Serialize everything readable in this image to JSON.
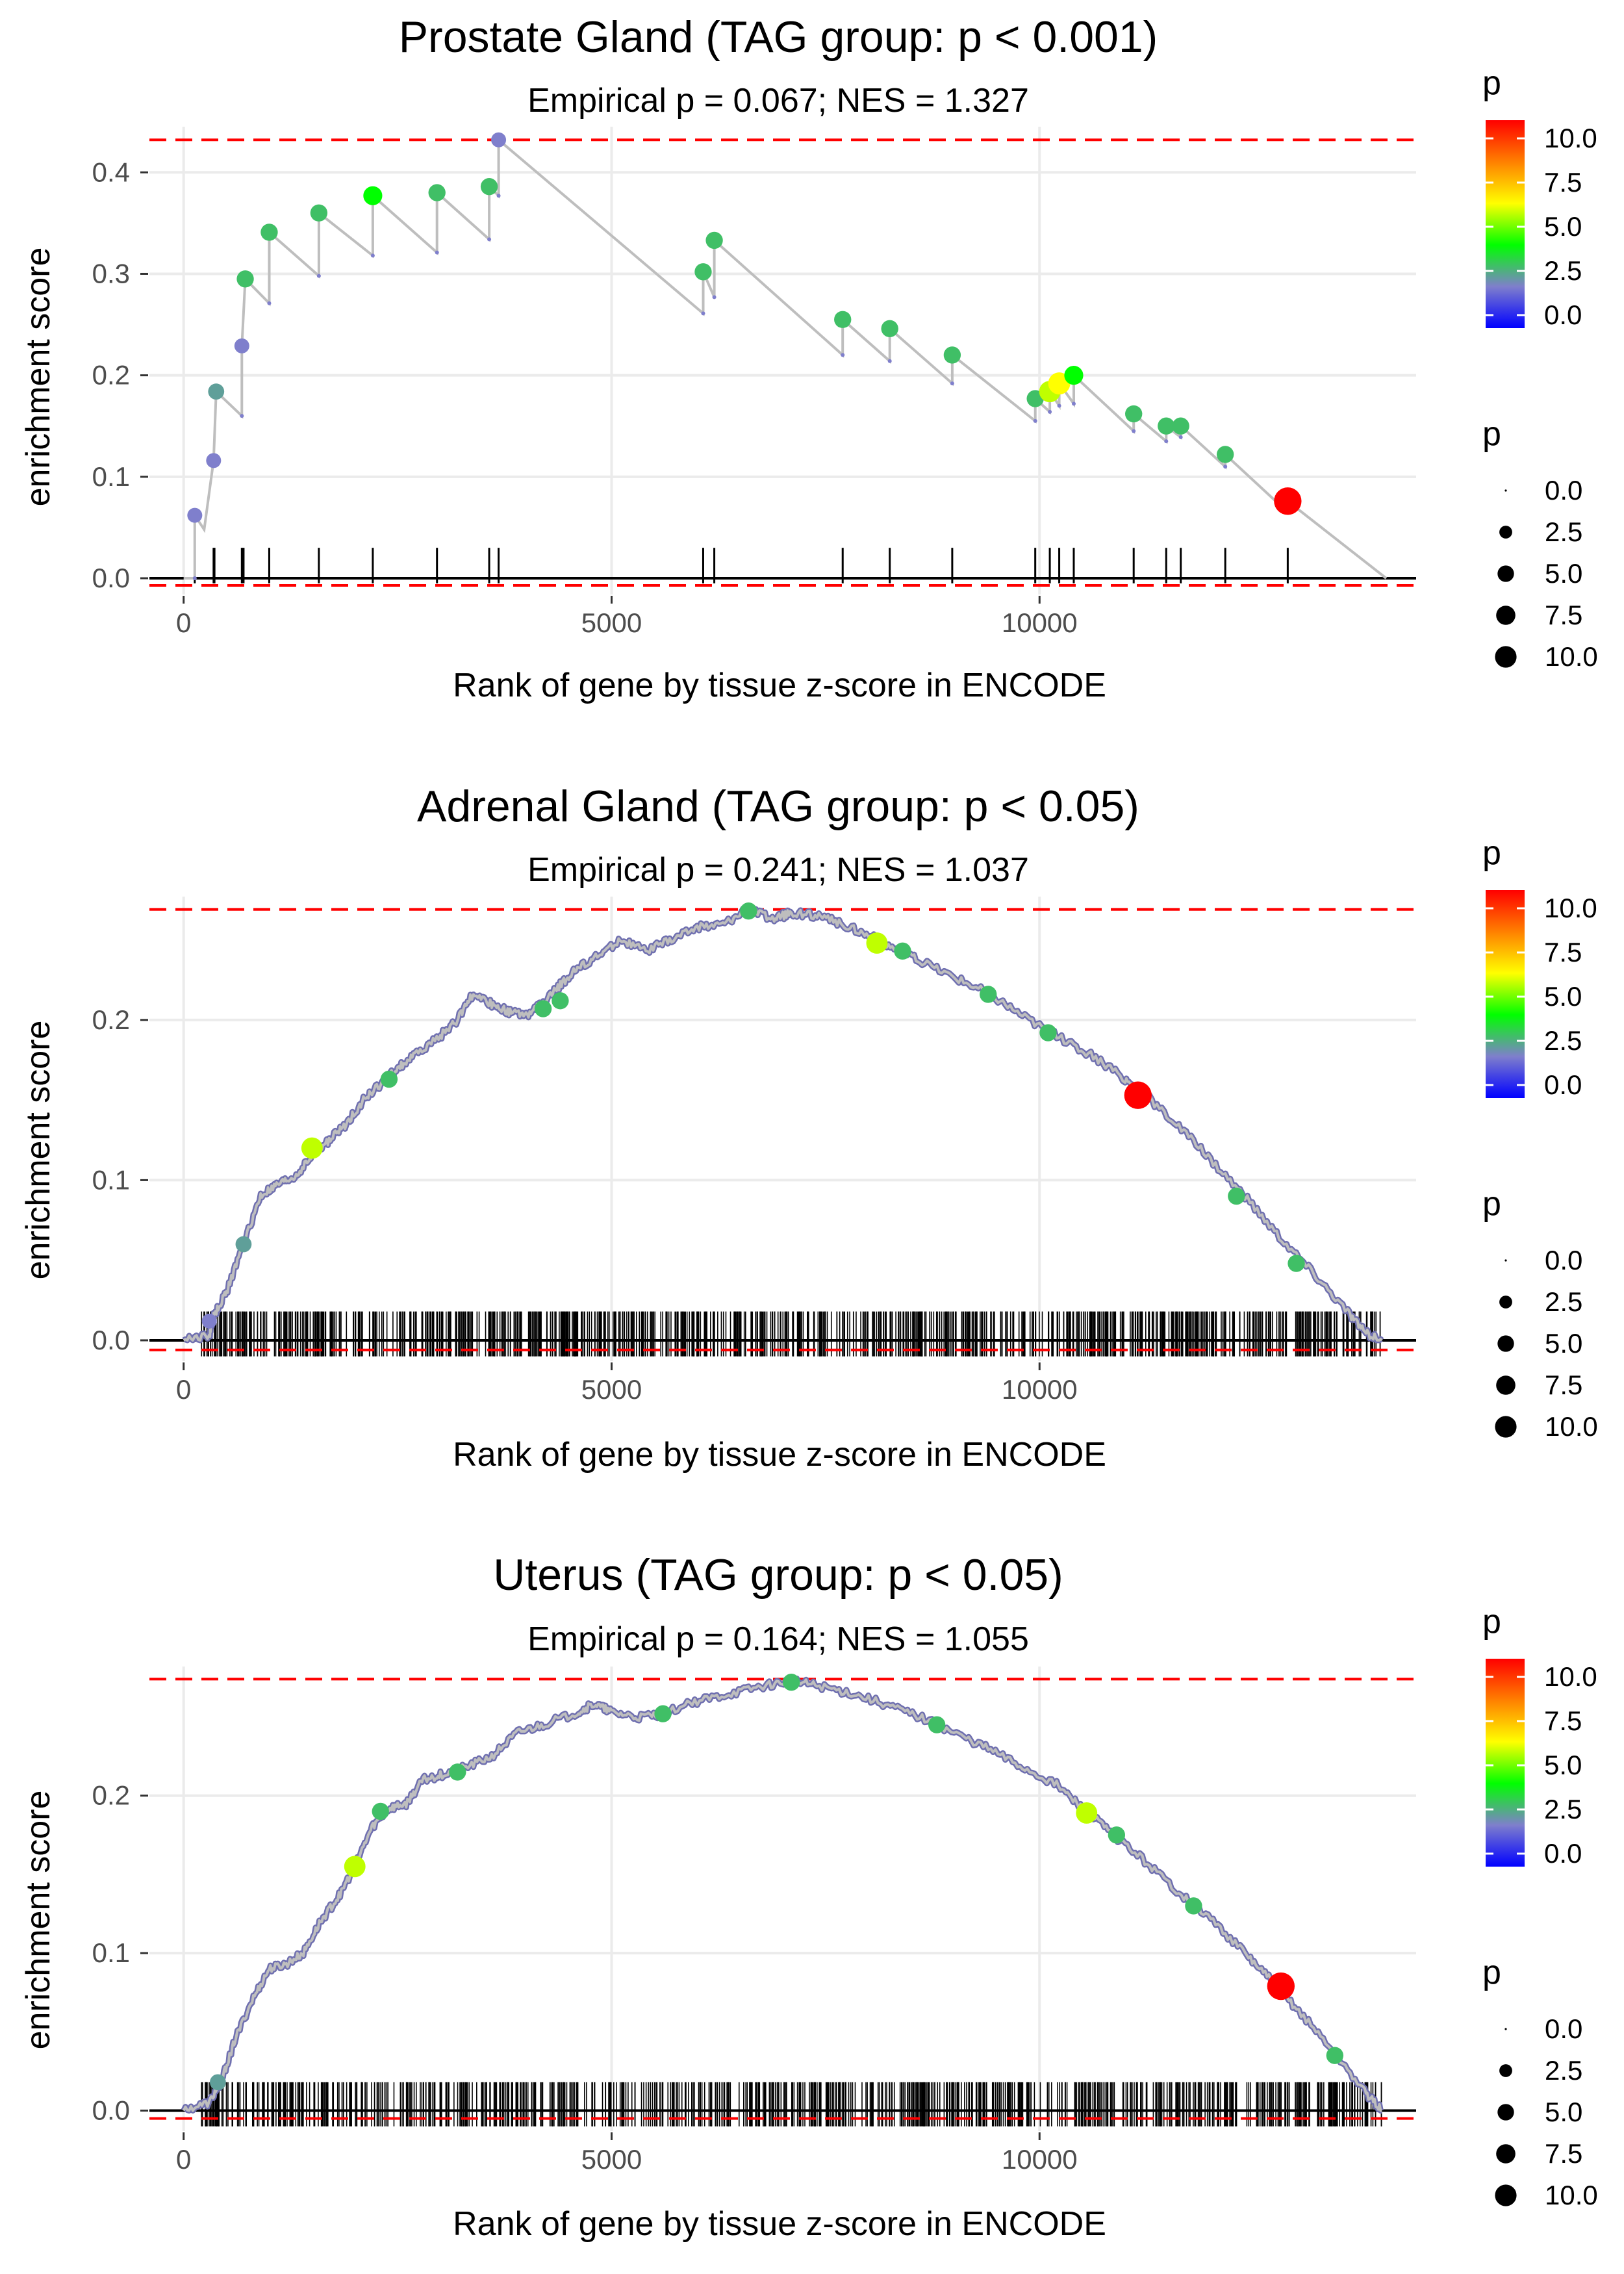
{
  "colors": {
    "grid": "#ebebeb",
    "line": "#bebebe",
    "baseline": "#000000",
    "dashed": "#ff0000",
    "text": "#000000",
    "tick_text": "#4d4d4d",
    "gradient": [
      "#0000ff",
      "#7f7fcc",
      "#00ff00",
      "#ffff00",
      "#ff8000",
      "#ff0000"
    ]
  },
  "legend": {
    "color_title": "p",
    "color_labels": [
      "10.0",
      "7.5",
      "5.0",
      "2.5",
      "0.0"
    ],
    "size_title": "p",
    "size_labels": [
      "0.0",
      "2.5",
      "5.0",
      "7.5",
      "10.0"
    ]
  },
  "chart_data": [
    {
      "type": "line",
      "title": "Prostate Gland (TAG group: p < 0.001)",
      "subtitle": "Empirical p = 0.067; NES = 1.327",
      "xlabel": "Rank of gene by tissue z-score in ENCODE",
      "ylabel": "enrichment score",
      "xlim": [
        -400,
        14400
      ],
      "ylim": [
        -0.016,
        0.445
      ],
      "xticks": [
        0,
        5000,
        10000
      ],
      "xtick_labels": [
        "0",
        "5000",
        "10000"
      ],
      "yticks": [
        0.0,
        0.1,
        0.2,
        0.3,
        0.4
      ],
      "ytick_labels": [
        "0.0",
        "0.1",
        "0.2",
        "0.3",
        "0.4"
      ],
      "max_es": 0.432,
      "min_es": -0.007,
      "rug_top": 0.03,
      "rug_bottom": -0.005,
      "rug_positions": [
        130,
        350,
        360,
        680,
        700,
        1000,
        1580,
        2210,
        2960,
        3570,
        3680,
        6070,
        6200,
        7700,
        8250,
        8980,
        9950,
        10120,
        10230,
        10400,
        11100,
        11480,
        11650,
        12170,
        12900
      ],
      "points": [
        {
          "x": 130,
          "y": 0.062,
          "p": 2.0
        },
        {
          "x": 350,
          "y": 0.116,
          "p": 2.0
        },
        {
          "x": 380,
          "y": 0.184,
          "p": 2.5
        },
        {
          "x": 680,
          "y": 0.229,
          "p": 2.0
        },
        {
          "x": 720,
          "y": 0.295,
          "p": 3.0
        },
        {
          "x": 1000,
          "y": 0.341,
          "p": 3.0
        },
        {
          "x": 1580,
          "y": 0.36,
          "p": 3.0
        },
        {
          "x": 2210,
          "y": 0.377,
          "p": 4.0
        },
        {
          "x": 2960,
          "y": 0.38,
          "p": 3.0
        },
        {
          "x": 3570,
          "y": 0.386,
          "p": 3.0
        },
        {
          "x": 3680,
          "y": 0.432,
          "p": 2.0
        },
        {
          "x": 6070,
          "y": 0.302,
          "p": 3.0
        },
        {
          "x": 6200,
          "y": 0.333,
          "p": 3.0
        },
        {
          "x": 7700,
          "y": 0.255,
          "p": 3.0
        },
        {
          "x": 8250,
          "y": 0.246,
          "p": 3.0
        },
        {
          "x": 8980,
          "y": 0.22,
          "p": 3.0
        },
        {
          "x": 9950,
          "y": 0.177,
          "p": 3.0
        },
        {
          "x": 10120,
          "y": 0.184,
          "p": 5.5
        },
        {
          "x": 10230,
          "y": 0.192,
          "p": 6.0
        },
        {
          "x": 10400,
          "y": 0.2,
          "p": 4.0
        },
        {
          "x": 11100,
          "y": 0.162,
          "p": 3.0
        },
        {
          "x": 11480,
          "y": 0.15,
          "p": 3.0
        },
        {
          "x": 11650,
          "y": 0.15,
          "p": 3.0
        },
        {
          "x": 12170,
          "y": 0.122,
          "p": 3.0
        },
        {
          "x": 12900,
          "y": 0.076,
          "p": 10.5
        }
      ],
      "line": [
        [
          0,
          0.0
        ],
        [
          130,
          0.0
        ],
        [
          130,
          0.062
        ],
        [
          240,
          0.048
        ],
        [
          350,
          0.116
        ],
        [
          380,
          0.184
        ],
        [
          680,
          0.16
        ],
        [
          680,
          0.229
        ],
        [
          720,
          0.295
        ],
        [
          1000,
          0.271
        ],
        [
          1000,
          0.341
        ],
        [
          1580,
          0.298
        ],
        [
          1580,
          0.36
        ],
        [
          2210,
          0.318
        ],
        [
          2210,
          0.377
        ],
        [
          2960,
          0.321
        ],
        [
          2960,
          0.38
        ],
        [
          3570,
          0.334
        ],
        [
          3570,
          0.386
        ],
        [
          3680,
          0.377
        ],
        [
          3680,
          0.432
        ],
        [
          6070,
          0.261
        ],
        [
          6070,
          0.302
        ],
        [
          6200,
          0.277
        ],
        [
          6200,
          0.333
        ],
        [
          7700,
          0.22
        ],
        [
          7700,
          0.255
        ],
        [
          8250,
          0.214
        ],
        [
          8250,
          0.246
        ],
        [
          8980,
          0.192
        ],
        [
          8980,
          0.22
        ],
        [
          9950,
          0.155
        ],
        [
          9950,
          0.177
        ],
        [
          10120,
          0.164
        ],
        [
          10120,
          0.184
        ],
        [
          10230,
          0.17
        ],
        [
          10230,
          0.192
        ],
        [
          10400,
          0.172
        ],
        [
          10400,
          0.2
        ],
        [
          11100,
          0.145
        ],
        [
          11100,
          0.162
        ],
        [
          11480,
          0.135
        ],
        [
          11480,
          0.15
        ],
        [
          11650,
          0.139
        ],
        [
          11650,
          0.15
        ],
        [
          12170,
          0.11
        ],
        [
          12170,
          0.122
        ],
        [
          12900,
          0.065
        ],
        [
          12900,
          0.076
        ],
        [
          14050,
          0.0
        ]
      ]
    },
    {
      "type": "line",
      "title": "Adrenal Gland (TAG group: p < 0.05)",
      "subtitle": "Empirical p = 0.241; NES = 1.037",
      "xlabel": "Rank of gene by tissue z-score in ENCODE",
      "ylabel": "enrichment score",
      "xlim": [
        -400,
        14400
      ],
      "ylim": [
        -0.013,
        0.277
      ],
      "xticks": [
        0,
        5000,
        10000
      ],
      "xtick_labels": [
        "0",
        "5000",
        "10000"
      ],
      "yticks": [
        0.0,
        0.1,
        0.2
      ],
      "ytick_labels": [
        "0.0",
        "0.1",
        "0.2"
      ],
      "max_es": 0.269,
      "min_es": -0.006,
      "rug_top": 0.018,
      "rug_bottom": -0.01,
      "rug_count": 900,
      "rug_seed": 11,
      "curve": [
        [
          0,
          0.0
        ],
        [
          300,
          0.003
        ],
        [
          350,
          0.015
        ],
        [
          500,
          0.03
        ],
        [
          700,
          0.06
        ],
        [
          900,
          0.09
        ],
        [
          1100,
          0.097
        ],
        [
          1300,
          0.102
        ],
        [
          1500,
          0.115
        ],
        [
          1700,
          0.125
        ],
        [
          1900,
          0.135
        ],
        [
          2100,
          0.15
        ],
        [
          2300,
          0.16
        ],
        [
          2500,
          0.17
        ],
        [
          2700,
          0.178
        ],
        [
          3000,
          0.19
        ],
        [
          3200,
          0.2
        ],
        [
          3350,
          0.215
        ],
        [
          3600,
          0.21
        ],
        [
          3800,
          0.205
        ],
        [
          4000,
          0.203
        ],
        [
          4200,
          0.21
        ],
        [
          4400,
          0.222
        ],
        [
          4600,
          0.232
        ],
        [
          4850,
          0.24
        ],
        [
          5100,
          0.25
        ],
        [
          5400,
          0.243
        ],
        [
          5700,
          0.25
        ],
        [
          6000,
          0.258
        ],
        [
          6300,
          0.26
        ],
        [
          6600,
          0.269
        ],
        [
          6900,
          0.263
        ],
        [
          7100,
          0.267
        ],
        [
          7400,
          0.265
        ],
        [
          7700,
          0.26
        ],
        [
          8000,
          0.253
        ],
        [
          8300,
          0.245
        ],
        [
          8600,
          0.237
        ],
        [
          9000,
          0.227
        ],
        [
          9400,
          0.217
        ],
        [
          9800,
          0.203
        ],
        [
          10200,
          0.19
        ],
        [
          10600,
          0.178
        ],
        [
          11000,
          0.163
        ],
        [
          11200,
          0.155
        ],
        [
          11600,
          0.135
        ],
        [
          12000,
          0.113
        ],
        [
          12400,
          0.09
        ],
        [
          12800,
          0.065
        ],
        [
          13200,
          0.042
        ],
        [
          13600,
          0.018
        ],
        [
          13800,
          0.005
        ],
        [
          14000,
          0.0
        ]
      ],
      "points": [
        {
          "x": 1500,
          "y": 0.12,
          "p": 5.5
        },
        {
          "x": 2400,
          "y": 0.163,
          "p": 3.0
        },
        {
          "x": 4200,
          "y": 0.207,
          "p": 3.0
        },
        {
          "x": 4400,
          "y": 0.212,
          "p": 3.0
        },
        {
          "x": 6600,
          "y": 0.268,
          "p": 3.0
        },
        {
          "x": 8100,
          "y": 0.248,
          "p": 5.5
        },
        {
          "x": 8400,
          "y": 0.243,
          "p": 3.0
        },
        {
          "x": 9400,
          "y": 0.216,
          "p": 3.0
        },
        {
          "x": 10100,
          "y": 0.192,
          "p": 3.0
        },
        {
          "x": 11150,
          "y": 0.153,
          "p": 10.5
        },
        {
          "x": 12300,
          "y": 0.09,
          "p": 3.0
        },
        {
          "x": 13000,
          "y": 0.048,
          "p": 3.0
        },
        {
          "x": 300,
          "y": 0.012,
          "p": 2.0
        },
        {
          "x": 700,
          "y": 0.06,
          "p": 2.5
        }
      ]
    },
    {
      "type": "line",
      "title": "Uterus (TAG group: p < 0.05)",
      "subtitle": "Empirical p = 0.164; NES = 1.055",
      "xlabel": "Rank of gene by tissue z-score in ENCODE",
      "ylabel": "enrichment score",
      "xlim": [
        -400,
        14400
      ],
      "ylim": [
        -0.013,
        0.282
      ],
      "xticks": [
        0,
        5000,
        10000
      ],
      "xtick_labels": [
        "0",
        "5000",
        "10000"
      ],
      "yticks": [
        0.0,
        0.1,
        0.2
      ],
      "ytick_labels": [
        "0.0",
        "0.1",
        "0.2"
      ],
      "max_es": 0.274,
      "min_es": -0.005,
      "rug_top": 0.018,
      "rug_bottom": -0.01,
      "rug_count": 800,
      "rug_seed": 29,
      "curve": [
        [
          0,
          0.0
        ],
        [
          300,
          0.005
        ],
        [
          450,
          0.02
        ],
        [
          600,
          0.045
        ],
        [
          800,
          0.07
        ],
        [
          1000,
          0.09
        ],
        [
          1200,
          0.093
        ],
        [
          1400,
          0.1
        ],
        [
          1600,
          0.12
        ],
        [
          1800,
          0.135
        ],
        [
          2000,
          0.155
        ],
        [
          2200,
          0.18
        ],
        [
          2400,
          0.192
        ],
        [
          2600,
          0.195
        ],
        [
          2800,
          0.21
        ],
        [
          3000,
          0.213
        ],
        [
          3300,
          0.218
        ],
        [
          3600,
          0.225
        ],
        [
          3900,
          0.24
        ],
        [
          4200,
          0.245
        ],
        [
          4600,
          0.253
        ],
        [
          4800,
          0.258
        ],
        [
          5000,
          0.253
        ],
        [
          5300,
          0.25
        ],
        [
          5600,
          0.252
        ],
        [
          6000,
          0.26
        ],
        [
          6400,
          0.265
        ],
        [
          6800,
          0.27
        ],
        [
          7100,
          0.273
        ],
        [
          7400,
          0.27
        ],
        [
          7800,
          0.265
        ],
        [
          8200,
          0.258
        ],
        [
          8600,
          0.25
        ],
        [
          9000,
          0.24
        ],
        [
          9400,
          0.23
        ],
        [
          9800,
          0.218
        ],
        [
          10200,
          0.207
        ],
        [
          10500,
          0.192
        ],
        [
          10800,
          0.178
        ],
        [
          11200,
          0.16
        ],
        [
          11600,
          0.14
        ],
        [
          12000,
          0.122
        ],
        [
          12400,
          0.1
        ],
        [
          12700,
          0.083
        ],
        [
          13000,
          0.065
        ],
        [
          13400,
          0.04
        ],
        [
          13800,
          0.012
        ],
        [
          14000,
          0.0
        ]
      ],
      "points": [
        {
          "x": 400,
          "y": 0.018,
          "p": 2.5
        },
        {
          "x": 2000,
          "y": 0.155,
          "p": 5.5
        },
        {
          "x": 2300,
          "y": 0.19,
          "p": 3.0
        },
        {
          "x": 3200,
          "y": 0.215,
          "p": 3.0
        },
        {
          "x": 5600,
          "y": 0.252,
          "p": 3.0
        },
        {
          "x": 7100,
          "y": 0.272,
          "p": 3.0
        },
        {
          "x": 8800,
          "y": 0.245,
          "p": 3.0
        },
        {
          "x": 10550,
          "y": 0.189,
          "p": 5.5
        },
        {
          "x": 10900,
          "y": 0.175,
          "p": 3.0
        },
        {
          "x": 11800,
          "y": 0.13,
          "p": 3.0
        },
        {
          "x": 12820,
          "y": 0.079,
          "p": 10.5
        },
        {
          "x": 13450,
          "y": 0.035,
          "p": 3.0
        }
      ]
    }
  ]
}
